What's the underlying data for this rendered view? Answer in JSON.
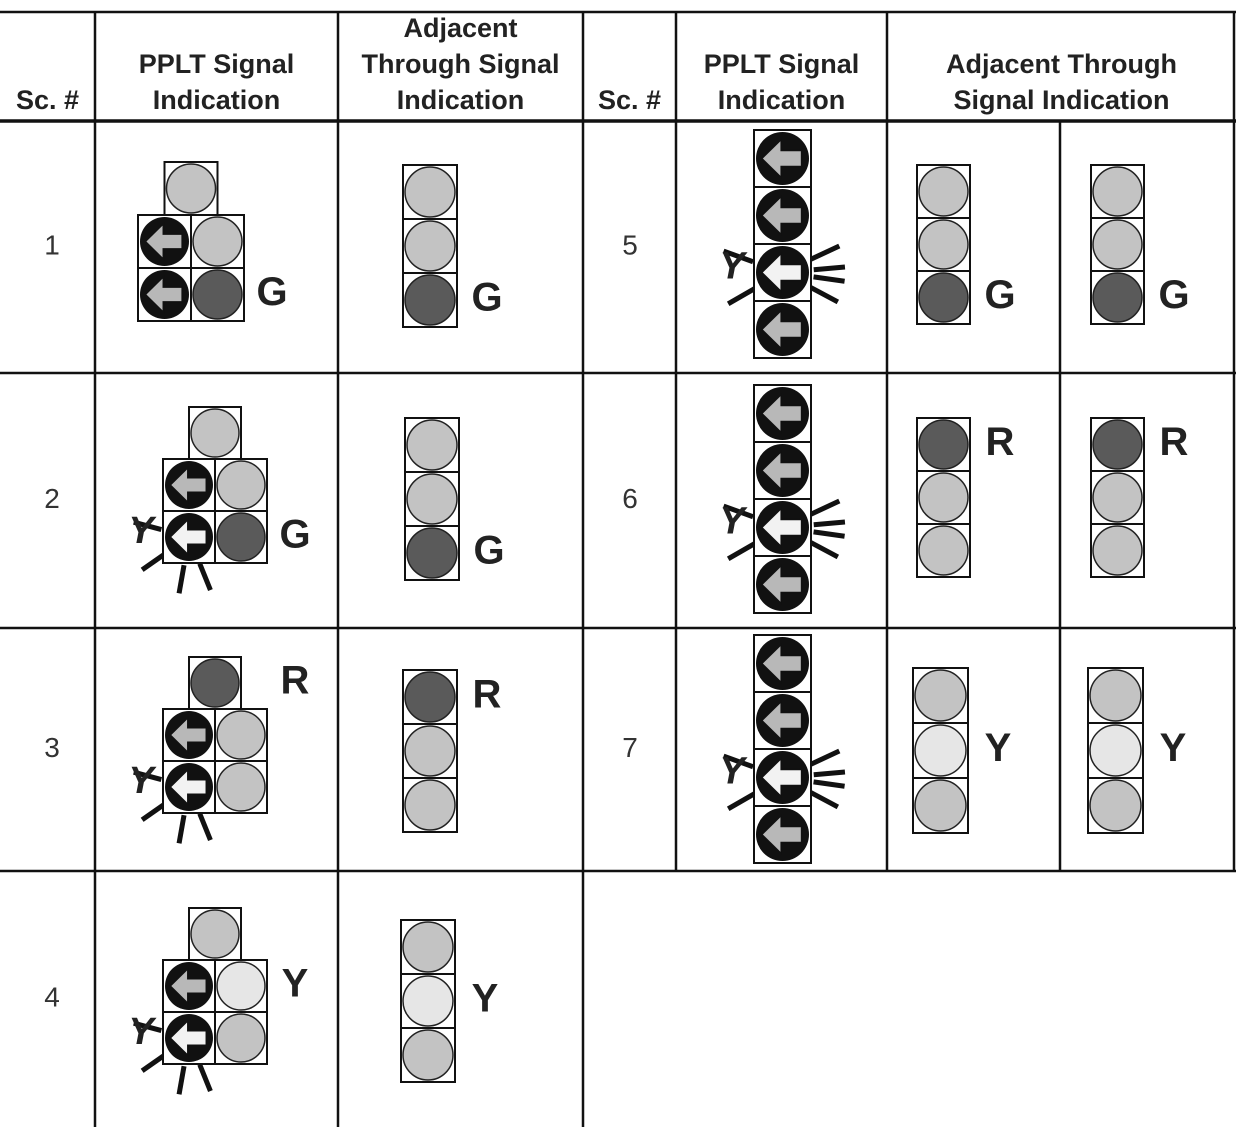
{
  "headers": {
    "left": [
      "Sc. #",
      "PPLT Signal Indication",
      "Adjacent Through Signal Indication"
    ],
    "right": [
      "Sc. #",
      "PPLT Signal Indication",
      "Adjacent Through Signal Indication"
    ]
  },
  "scenarios": [
    {
      "number": "1",
      "pplt_label": "G",
      "through_labels": [
        "G"
      ]
    },
    {
      "number": "2",
      "flash_label": "Y",
      "pplt_label": "G",
      "through_labels": [
        "G"
      ]
    },
    {
      "number": "3",
      "flash_label": "Y",
      "pplt_label": "R",
      "through_labels": [
        "R"
      ]
    },
    {
      "number": "4",
      "flash_label": "Y",
      "pplt_label": "Y",
      "through_labels": [
        "Y"
      ]
    },
    {
      "number": "5",
      "flash_label": "Y",
      "through_labels": [
        "G",
        "G"
      ]
    },
    {
      "number": "6",
      "flash_label": "Y",
      "through_labels": [
        "R",
        "R"
      ]
    },
    {
      "number": "7",
      "flash_label": "Y",
      "through_labels": [
        "Y",
        "Y"
      ]
    }
  ]
}
